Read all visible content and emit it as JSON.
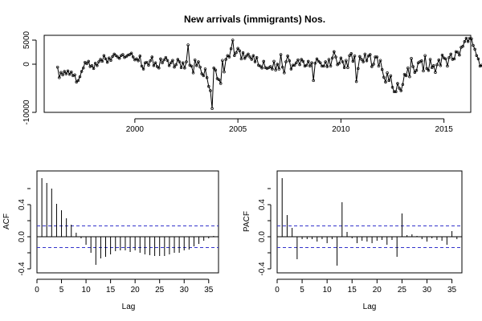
{
  "chart_data": [
    {
      "type": "line",
      "title": "New arrivals (immigrants) Nos.",
      "xlabel": "",
      "ylabel": "",
      "xlim": [
        1995.6,
        2016.3
      ],
      "ylim": [
        -10000,
        6000
      ],
      "x_ticks": [
        2000,
        2005,
        2010,
        2015
      ],
      "x_tick_labels": [
        "2000",
        "2005",
        "2010",
        "2015"
      ],
      "y_ticks": [
        -10000,
        0,
        5000
      ],
      "y_tick_labels": [
        "-10000",
        "0",
        "5000"
      ],
      "grid": false,
      "legend": "none",
      "color": "#000000",
      "start": 1996.25,
      "step": 0.0833333,
      "values": [
        -600,
        -2800,
        -1700,
        -2200,
        -1500,
        -2000,
        -1400,
        -2100,
        -1600,
        -2400,
        -2200,
        -3700,
        -3400,
        -2600,
        -1500,
        -800,
        400,
        100,
        600,
        -500,
        -300,
        -900,
        200,
        -300,
        500,
        1000,
        600,
        1800,
        1100,
        400,
        1300,
        800,
        1600,
        2100,
        1800,
        1500,
        1200,
        1800,
        2000,
        1400,
        1600,
        1900,
        2000,
        2300,
        1500,
        900,
        1100,
        700,
        1700,
        -400,
        -1000,
        300,
        400,
        -200,
        700,
        1500,
        -300,
        300,
        -500,
        -800,
        1100,
        300,
        900,
        1400,
        800,
        -300,
        300,
        800,
        -600,
        -100,
        1000,
        500,
        -700,
        300,
        -800,
        500,
        4000,
        -200,
        -400,
        -1800,
        900,
        -300,
        500,
        -600,
        -2000,
        -2400,
        -1000,
        -2800,
        -4600,
        -5500,
        -9200,
        -800,
        -1200,
        -3000,
        -3200,
        -4000,
        800,
        -1600,
        1000,
        1800,
        1500,
        3200,
        5000,
        1800,
        2400,
        3300,
        2800,
        1100,
        2400,
        1200,
        1700,
        2100,
        1500,
        1000,
        1800,
        500,
        1400,
        -200,
        -400,
        -800,
        600,
        -700,
        -900,
        -700,
        -500,
        -1000,
        600,
        -1200,
        0,
        -1000,
        2000,
        -600,
        -1800,
        500,
        1700,
        700,
        -1000,
        -200,
        -200,
        300,
        900,
        -100,
        1000,
        600,
        -400,
        -200,
        600,
        -400,
        300,
        -3400,
        200,
        1100,
        600,
        300,
        -400,
        -400,
        500,
        -500,
        1000,
        -400,
        1300,
        2600,
        1500,
        -100,
        200,
        1300,
        500,
        -700,
        800,
        -700,
        1800,
        2200,
        600,
        1700,
        -3600,
        -900,
        1600,
        1000,
        500,
        2100,
        700,
        1700,
        2000,
        -500,
        0,
        1500,
        1500,
        -400,
        800,
        -1100,
        -2700,
        -3700,
        -1800,
        -3400,
        -2400,
        -4800,
        -5700,
        -5700,
        -4000,
        -5000,
        -5500,
        -4200,
        -2100,
        -2400,
        -800,
        -2600,
        1200,
        -500,
        -1700,
        -1300,
        300,
        500,
        700,
        -1400,
        1800,
        -900,
        -1300,
        1000,
        -700,
        -300,
        -1700,
        -100,
        900,
        -300,
        1900,
        1300,
        1100,
        -400,
        1400,
        2100,
        1000,
        1100,
        2600,
        2500,
        1900,
        3500,
        3700,
        4700,
        5400,
        4700,
        5400,
        5300,
        3900,
        3100,
        1800,
        1100,
        -400,
        -200,
        -1600,
        -1300,
        -2200,
        -3000,
        -2800,
        -3700,
        -4900,
        -5600,
        -5800,
        -5800,
        -5900,
        -4200,
        -3400,
        -2300,
        -1300,
        -800,
        -1000,
        -700,
        -300,
        0,
        -500,
        -200,
        -800,
        200,
        600,
        900,
        400,
        1100,
        1000,
        300,
        -1800,
        -1100,
        -1500,
        -1200,
        -2800,
        -1700,
        -2600,
        -1600,
        -1900,
        -1400,
        -1500,
        -1000,
        1100,
        600,
        900,
        1800,
        3200,
        2200,
        2000
      ]
    },
    {
      "type": "bar",
      "title": "",
      "xlabel": "Lag",
      "ylabel": "ACF",
      "xlim": [
        0,
        37
      ],
      "ylim": [
        -0.45,
        0.82
      ],
      "x_ticks": [
        0,
        5,
        10,
        15,
        20,
        25,
        30,
        35
      ],
      "x_tick_labels": [
        "0",
        "5",
        "10",
        "15",
        "20",
        "25",
        "30",
        "35"
      ],
      "y_ticks": [
        -0.4,
        0.0,
        0.4
      ],
      "y_tick_labels": [
        "-0.4",
        "0.0",
        "0.4"
      ],
      "confidence_bounds": [
        0.135,
        -0.135
      ],
      "confidence_color": "#3333cc",
      "grid": false,
      "legend": "none",
      "lags": [
        1,
        2,
        3,
        4,
        5,
        6,
        7,
        8,
        9,
        10,
        11,
        12,
        13,
        14,
        15,
        16,
        17,
        18,
        19,
        20,
        21,
        22,
        23,
        24,
        25,
        26,
        27,
        28,
        29,
        30,
        31,
        32,
        33,
        34,
        35,
        36
      ],
      "values": [
        0.73,
        0.67,
        0.6,
        0.41,
        0.33,
        0.23,
        0.15,
        0.05,
        -0.02,
        -0.1,
        -0.2,
        -0.35,
        -0.27,
        -0.25,
        -0.22,
        -0.18,
        -0.17,
        -0.17,
        -0.19,
        -0.17,
        -0.2,
        -0.22,
        -0.23,
        -0.24,
        -0.24,
        -0.24,
        -0.22,
        -0.2,
        -0.2,
        -0.17,
        -0.16,
        -0.12,
        -0.09,
        -0.05,
        -0.02,
        0.01
      ]
    },
    {
      "type": "bar",
      "title": "",
      "xlabel": "Lag",
      "ylabel": "PACF",
      "xlim": [
        0,
        37
      ],
      "ylim": [
        -0.45,
        0.82
      ],
      "x_ticks": [
        0,
        5,
        10,
        15,
        20,
        25,
        30,
        35
      ],
      "x_tick_labels": [
        "0",
        "5",
        "10",
        "15",
        "20",
        "25",
        "30",
        "35"
      ],
      "y_ticks": [
        -0.4,
        0.0,
        0.4
      ],
      "y_tick_labels": [
        "-0.4",
        "0.0",
        "0.4"
      ],
      "confidence_bounds": [
        0.135,
        -0.135
      ],
      "confidence_color": "#3333cc",
      "grid": false,
      "legend": "none",
      "lags": [
        1,
        2,
        3,
        4,
        5,
        6,
        7,
        8,
        9,
        10,
        11,
        12,
        13,
        14,
        15,
        16,
        17,
        18,
        19,
        20,
        21,
        22,
        23,
        24,
        25,
        26,
        27,
        28,
        29,
        30,
        31,
        32,
        33,
        34,
        35,
        36
      ],
      "values": [
        0.73,
        0.27,
        0.11,
        -0.28,
        -0.03,
        -0.03,
        -0.03,
        -0.06,
        -0.03,
        -0.08,
        -0.03,
        -0.36,
        0.43,
        0.06,
        -0.02,
        -0.08,
        -0.05,
        -0.06,
        -0.08,
        -0.05,
        -0.04,
        -0.1,
        -0.04,
        -0.25,
        0.29,
        0.02,
        0.03,
        0.01,
        -0.03,
        -0.06,
        -0.02,
        -0.04,
        -0.05,
        -0.1,
        0.07,
        -0.03
      ]
    }
  ]
}
